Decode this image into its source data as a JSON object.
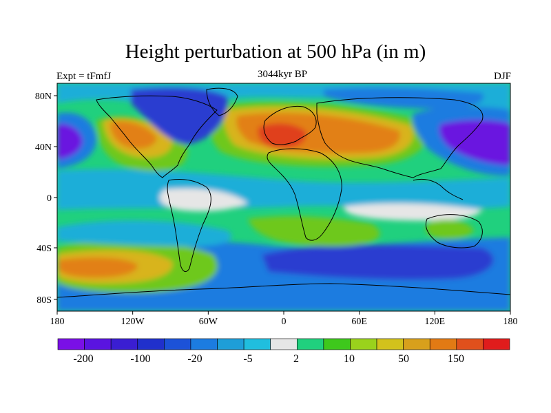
{
  "title": "Height perturbation at 500 hPa (in m)",
  "subtitle_left": "Expt = tFmfJ",
  "subtitle_center": "3044kyr BP",
  "subtitle_right": "DJF",
  "lat_labels": [
    "80N",
    "40N",
    "0",
    "40S",
    "80S"
  ],
  "lon_labels": [
    "180",
    "120W",
    "60W",
    "0",
    "60E",
    "120E",
    "180"
  ],
  "colorbar": {
    "colors": [
      "#7a10e6",
      "#5a14e0",
      "#3a1ed2",
      "#2030cc",
      "#1c52d8",
      "#1c7ce0",
      "#1e9ed8",
      "#20bede",
      "#e6e6e6",
      "#20d07e",
      "#3ec81c",
      "#9ad21c",
      "#d2c21c",
      "#d8a01c",
      "#e27a14",
      "#e0501c",
      "#e01c1c"
    ],
    "labels": [
      "-200",
      "-100",
      "-20",
      "-5",
      "2",
      "10",
      "50",
      "150"
    ]
  },
  "palette": {
    "pos_strong": "#e0401c",
    "pos_orange": "#e28014",
    "pos_mid": "#d8b41c",
    "pos_green": "#6ec81c",
    "neutral": "#e6e6e6",
    "neg_light": "#1eaed8",
    "neg_mid": "#1c7ce0",
    "neg_strong": "#2a3ed0",
    "neg_deep": "#6a12e0",
    "land_line": "#000000"
  }
}
